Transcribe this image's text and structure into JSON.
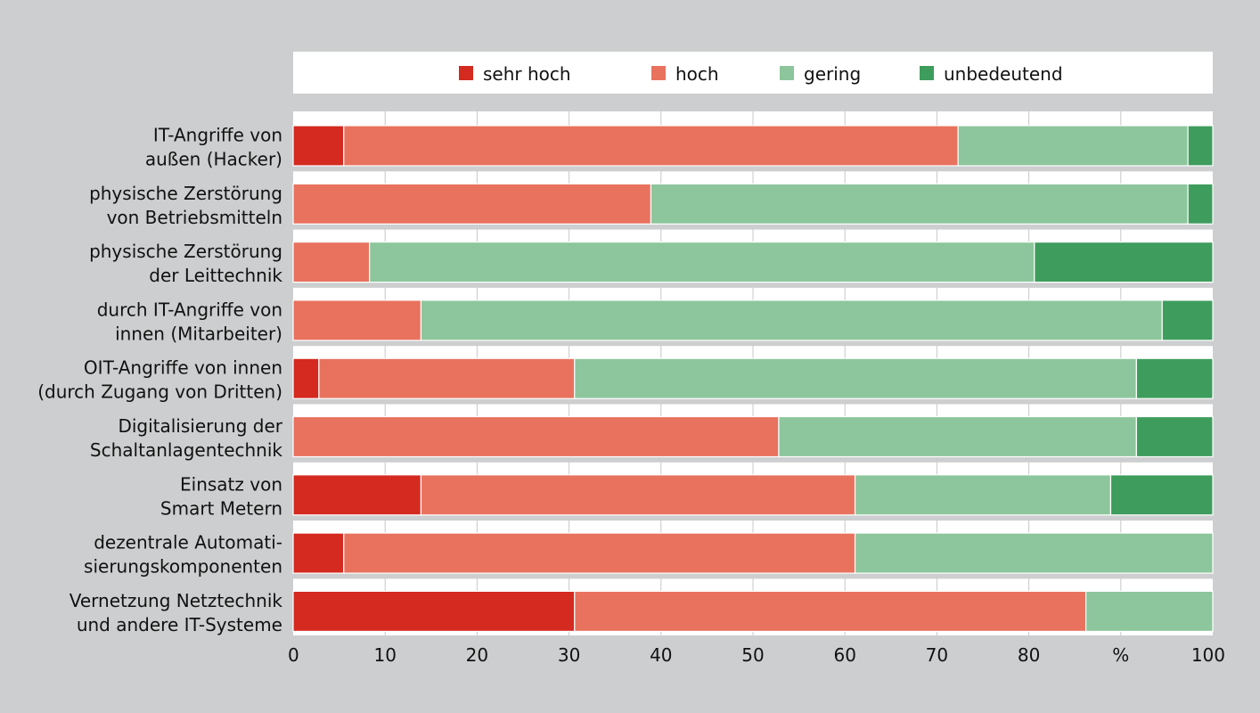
{
  "chart_data": {
    "type": "bar",
    "orientation": "horizontal",
    "stacked": true,
    "categories": [
      [
        "IT-Angriffe von",
        "außen (Hacker)"
      ],
      [
        "physische Zerstörung",
        "von Betriebsmitteln"
      ],
      [
        "physische Zerstörung",
        "der Leittechnik"
      ],
      [
        "durch IT-Angriffe von",
        "innen (Mitarbeiter)"
      ],
      [
        "OIT-Angriffe von innen",
        "(durch Zugang von Dritten)"
      ],
      [
        "Digitalisierung der",
        "Schaltanlagentechnik"
      ],
      [
        "Einsatz von",
        "Smart Metern"
      ],
      [
        "dezentrale Automati-",
        "sierungskomponenten"
      ],
      [
        "Vernetzung Netztechnik",
        "und andere IT-Systeme"
      ]
    ],
    "series": [
      {
        "name": "sehr hoch",
        "color": "#d42a1f",
        "values": [
          5.5,
          0,
          0,
          0,
          2.8,
          0,
          13.9,
          5.5,
          30.6
        ]
      },
      {
        "name": "hoch",
        "color": "#e8725e",
        "values": [
          66.8,
          38.9,
          8.3,
          13.9,
          27.8,
          52.8,
          47.2,
          55.6,
          55.6
        ]
      },
      {
        "name": "gering",
        "color": "#8dc69c",
        "values": [
          25.0,
          58.4,
          72.3,
          80.6,
          61.1,
          38.9,
          27.8,
          38.9,
          13.8
        ]
      },
      {
        "name": "unbedeutend",
        "color": "#3e9d5d",
        "values": [
          2.7,
          2.7,
          19.4,
          5.5,
          8.3,
          8.3,
          11.1,
          0,
          0
        ]
      }
    ],
    "xlim": [
      0,
      100
    ],
    "x_ticks": [
      "0",
      "10",
      "20",
      "30",
      "40",
      "50",
      "60",
      "70",
      "80",
      "%",
      "100"
    ],
    "grid": "vertical",
    "legend_position": "top"
  }
}
